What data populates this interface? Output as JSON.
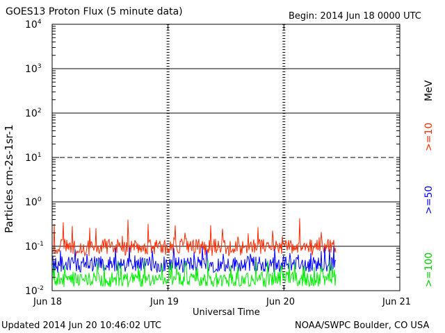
{
  "header": {
    "title": "GOES13 Proton Flux (5 minute data)",
    "begin": "Begin: 2014 Jun 18 0000 UTC"
  },
  "footer": {
    "updated": "Updated 2014 Jun 20 10:46:02 UTC",
    "source": "NOAA/SWPC Boulder, CO USA"
  },
  "chart_data": {
    "type": "line",
    "title": "GOES13 Proton Flux (5 minute data)",
    "xlabel": "Universal Time",
    "ylabel": "Particles cm-2s-1sr-1",
    "y_scale": "log",
    "ylim": [
      0.01,
      10000
    ],
    "y_ticks": [
      {
        "base": "10",
        "exp": "-2"
      },
      {
        "base": "10",
        "exp": "-1"
      },
      {
        "base": "10",
        "exp": "0"
      },
      {
        "base": "10",
        "exp": "1"
      },
      {
        "base": "10",
        "exp": "2"
      },
      {
        "base": "10",
        "exp": "3"
      },
      {
        "base": "10",
        "exp": "4"
      }
    ],
    "x_ticks": [
      "Jun 18",
      "Jun 19",
      "Jun 20",
      "Jun 21"
    ],
    "xlim_days": [
      0,
      3
    ],
    "data_end_day": 2.45,
    "grid": true,
    "units_label": "MeV",
    "series": [
      {
        "name": ">=10",
        "color": "#ff2a00",
        "typical": 0.1,
        "range": [
          0.06,
          0.45
        ]
      },
      {
        "name": ">=50",
        "color": "#0000ff",
        "typical": 0.04,
        "range": [
          0.025,
          0.1
        ]
      },
      {
        "name": ">=100",
        "color": "#00ee00",
        "typical": 0.018,
        "range": [
          0.012,
          0.05
        ]
      }
    ]
  }
}
